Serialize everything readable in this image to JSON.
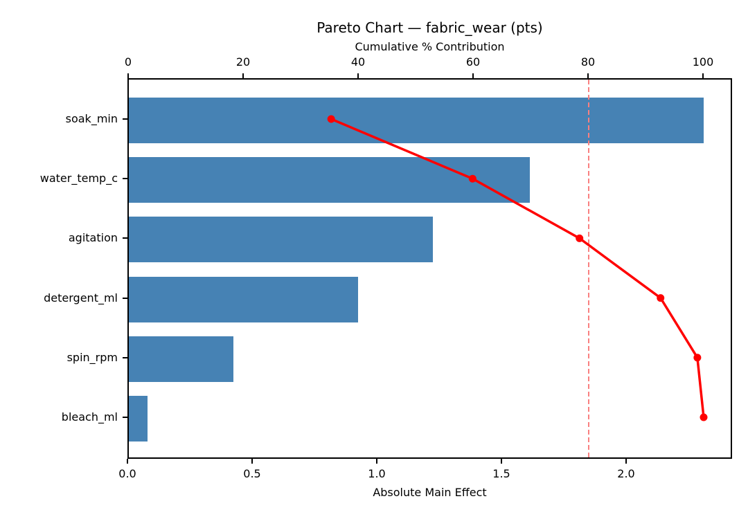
{
  "chart_data": {
    "type": "bar",
    "subtype": "pareto-horizontal-bar-with-cumulative-line",
    "title": "Pareto Chart — fabric_wear (pts)",
    "top_axis": {
      "label": "Cumulative % Contribution",
      "tick_values": [
        0,
        20,
        40,
        60,
        80,
        100
      ],
      "tick_labels": [
        "0",
        "20",
        "40",
        "60",
        "80",
        "100"
      ],
      "range": [
        0,
        105
      ]
    },
    "bottom_axis": {
      "label": "Absolute Main Effect",
      "tick_values": [
        0,
        0.5,
        1.0,
        1.5,
        2.0
      ],
      "tick_labels": [
        "0.0",
        "0.5",
        "1.0",
        "1.5",
        "2.0"
      ],
      "range": [
        0,
        2.42
      ]
    },
    "categories": [
      "soak_min",
      "water_temp_c",
      "agitation",
      "detergent_ml",
      "spin_rpm",
      "bleach_ml"
    ],
    "series": [
      {
        "name": "absolute-main-effect-bars",
        "values": [
          2.31,
          1.61,
          1.22,
          0.92,
          0.42,
          0.075
        ]
      },
      {
        "name": "cumulative-percent-line",
        "values": [
          35.2,
          59.8,
          78.4,
          92.5,
          98.9,
          100.0
        ]
      }
    ],
    "threshold_pct": 80,
    "grid": false,
    "colors": {
      "bar": "#4682B4",
      "line": "#FF0000",
      "threshold": "#F98080",
      "axis": "#000000",
      "background": "#FFFFFF"
    }
  }
}
